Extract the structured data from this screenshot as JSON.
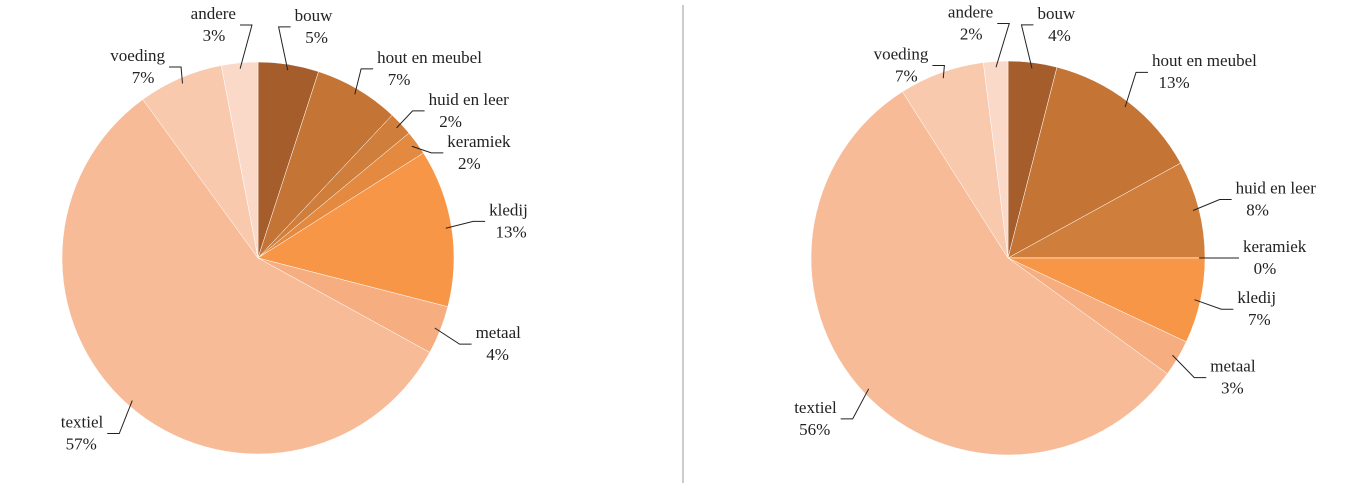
{
  "chart_data": [
    {
      "type": "pie",
      "categories": [
        "bouw",
        "hout en meubel",
        "huid en leer",
        "keramiek",
        "kledij",
        "metaal",
        "textiel",
        "voeding",
        "andere"
      ],
      "values": [
        5,
        7,
        2,
        2,
        13,
        4,
        57,
        7,
        3
      ],
      "value_labels": [
        "5%",
        "7%",
        "2%",
        "2%",
        "13%",
        "4%",
        "57%",
        "7%",
        "3%"
      ],
      "colors": [
        "#a55d2c",
        "#c47535",
        "#cf7e3c",
        "#e38a40",
        "#f79646",
        "#f6ae80",
        "#f8bb98",
        "#f9c9ae",
        "#fbd9c9"
      ]
    },
    {
      "type": "pie",
      "categories": [
        "bouw",
        "hout en meubel",
        "huid en leer",
        "keramiek",
        "kledij",
        "metaal",
        "textiel",
        "voeding",
        "andere"
      ],
      "values": [
        4,
        13,
        8,
        0,
        7,
        3,
        56,
        7,
        2
      ],
      "value_labels": [
        "4%",
        "13%",
        "8%",
        "0%",
        "7%",
        "3%",
        "56%",
        "7%",
        "2%"
      ],
      "colors": [
        "#a55d2c",
        "#c47535",
        "#cf7e3c",
        "#e38a40",
        "#f79646",
        "#f6ae80",
        "#f8bb98",
        "#f9c9ae",
        "#fbd9c9"
      ]
    }
  ]
}
